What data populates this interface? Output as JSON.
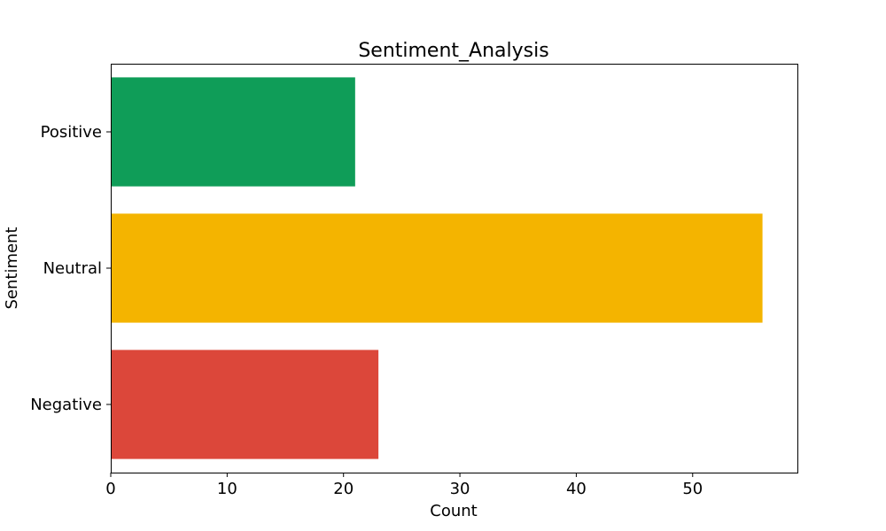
{
  "chart_data": {
    "type": "bar",
    "orientation": "horizontal",
    "title": "Sentiment_Analysis",
    "xlabel": "Count",
    "ylabel": "Sentiment",
    "categories": [
      "Negative",
      "Neutral",
      "Positive"
    ],
    "values": [
      23,
      56,
      21
    ],
    "colors": [
      "#dc473a",
      "#f4b400",
      "#0f9d58"
    ],
    "xlim": [
      0,
      59
    ],
    "xticks": [
      0,
      10,
      20,
      30,
      40,
      50
    ],
    "grid": false,
    "legend": "none"
  }
}
